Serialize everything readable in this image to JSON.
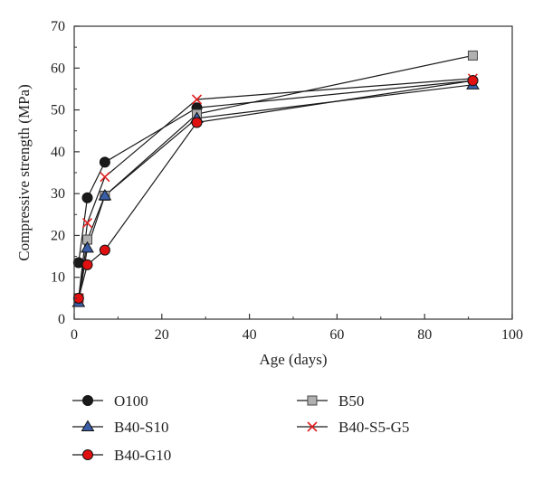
{
  "chart_data": {
    "type": "line",
    "xlabel": "Age (days)",
    "ylabel": "Compressive strength (MPa)",
    "xlim": [
      0,
      100
    ],
    "ylim": [
      0,
      70
    ],
    "xticks": [
      "0",
      "20",
      "40",
      "60",
      "80",
      "100"
    ],
    "yticks": [
      "0",
      "10",
      "20",
      "30",
      "40",
      "50",
      "60",
      "70"
    ],
    "grid": false,
    "legend_position": "bottom",
    "series": [
      {
        "name": "O100",
        "marker": "circle",
        "color": "#1a1a1a",
        "x": [
          1,
          3,
          7,
          28,
          91
        ],
        "y": [
          13.5,
          29,
          37.5,
          50.5,
          57
        ]
      },
      {
        "name": "B50",
        "marker": "square",
        "color": "#b0b0b0",
        "x": [
          1,
          3,
          7,
          28,
          91
        ],
        "y": [
          5,
          19,
          29.5,
          49,
          63
        ]
      },
      {
        "name": "B40-S10",
        "marker": "triangle",
        "color": "#3a5fa8",
        "x": [
          1,
          3,
          7,
          28,
          91
        ],
        "y": [
          4,
          17,
          29.5,
          48,
          56
        ]
      },
      {
        "name": "B40-S5-G5",
        "marker": "cross",
        "color": "#e02020",
        "x": [
          1,
          3,
          7,
          28,
          91
        ],
        "y": [
          5,
          23,
          34,
          52.5,
          57.5
        ]
      },
      {
        "name": "B40-G10",
        "marker": "circle",
        "color": "#e01010",
        "x": [
          1,
          3,
          7,
          28,
          91
        ],
        "y": [
          5,
          13,
          16.5,
          47,
          57
        ]
      }
    ]
  }
}
